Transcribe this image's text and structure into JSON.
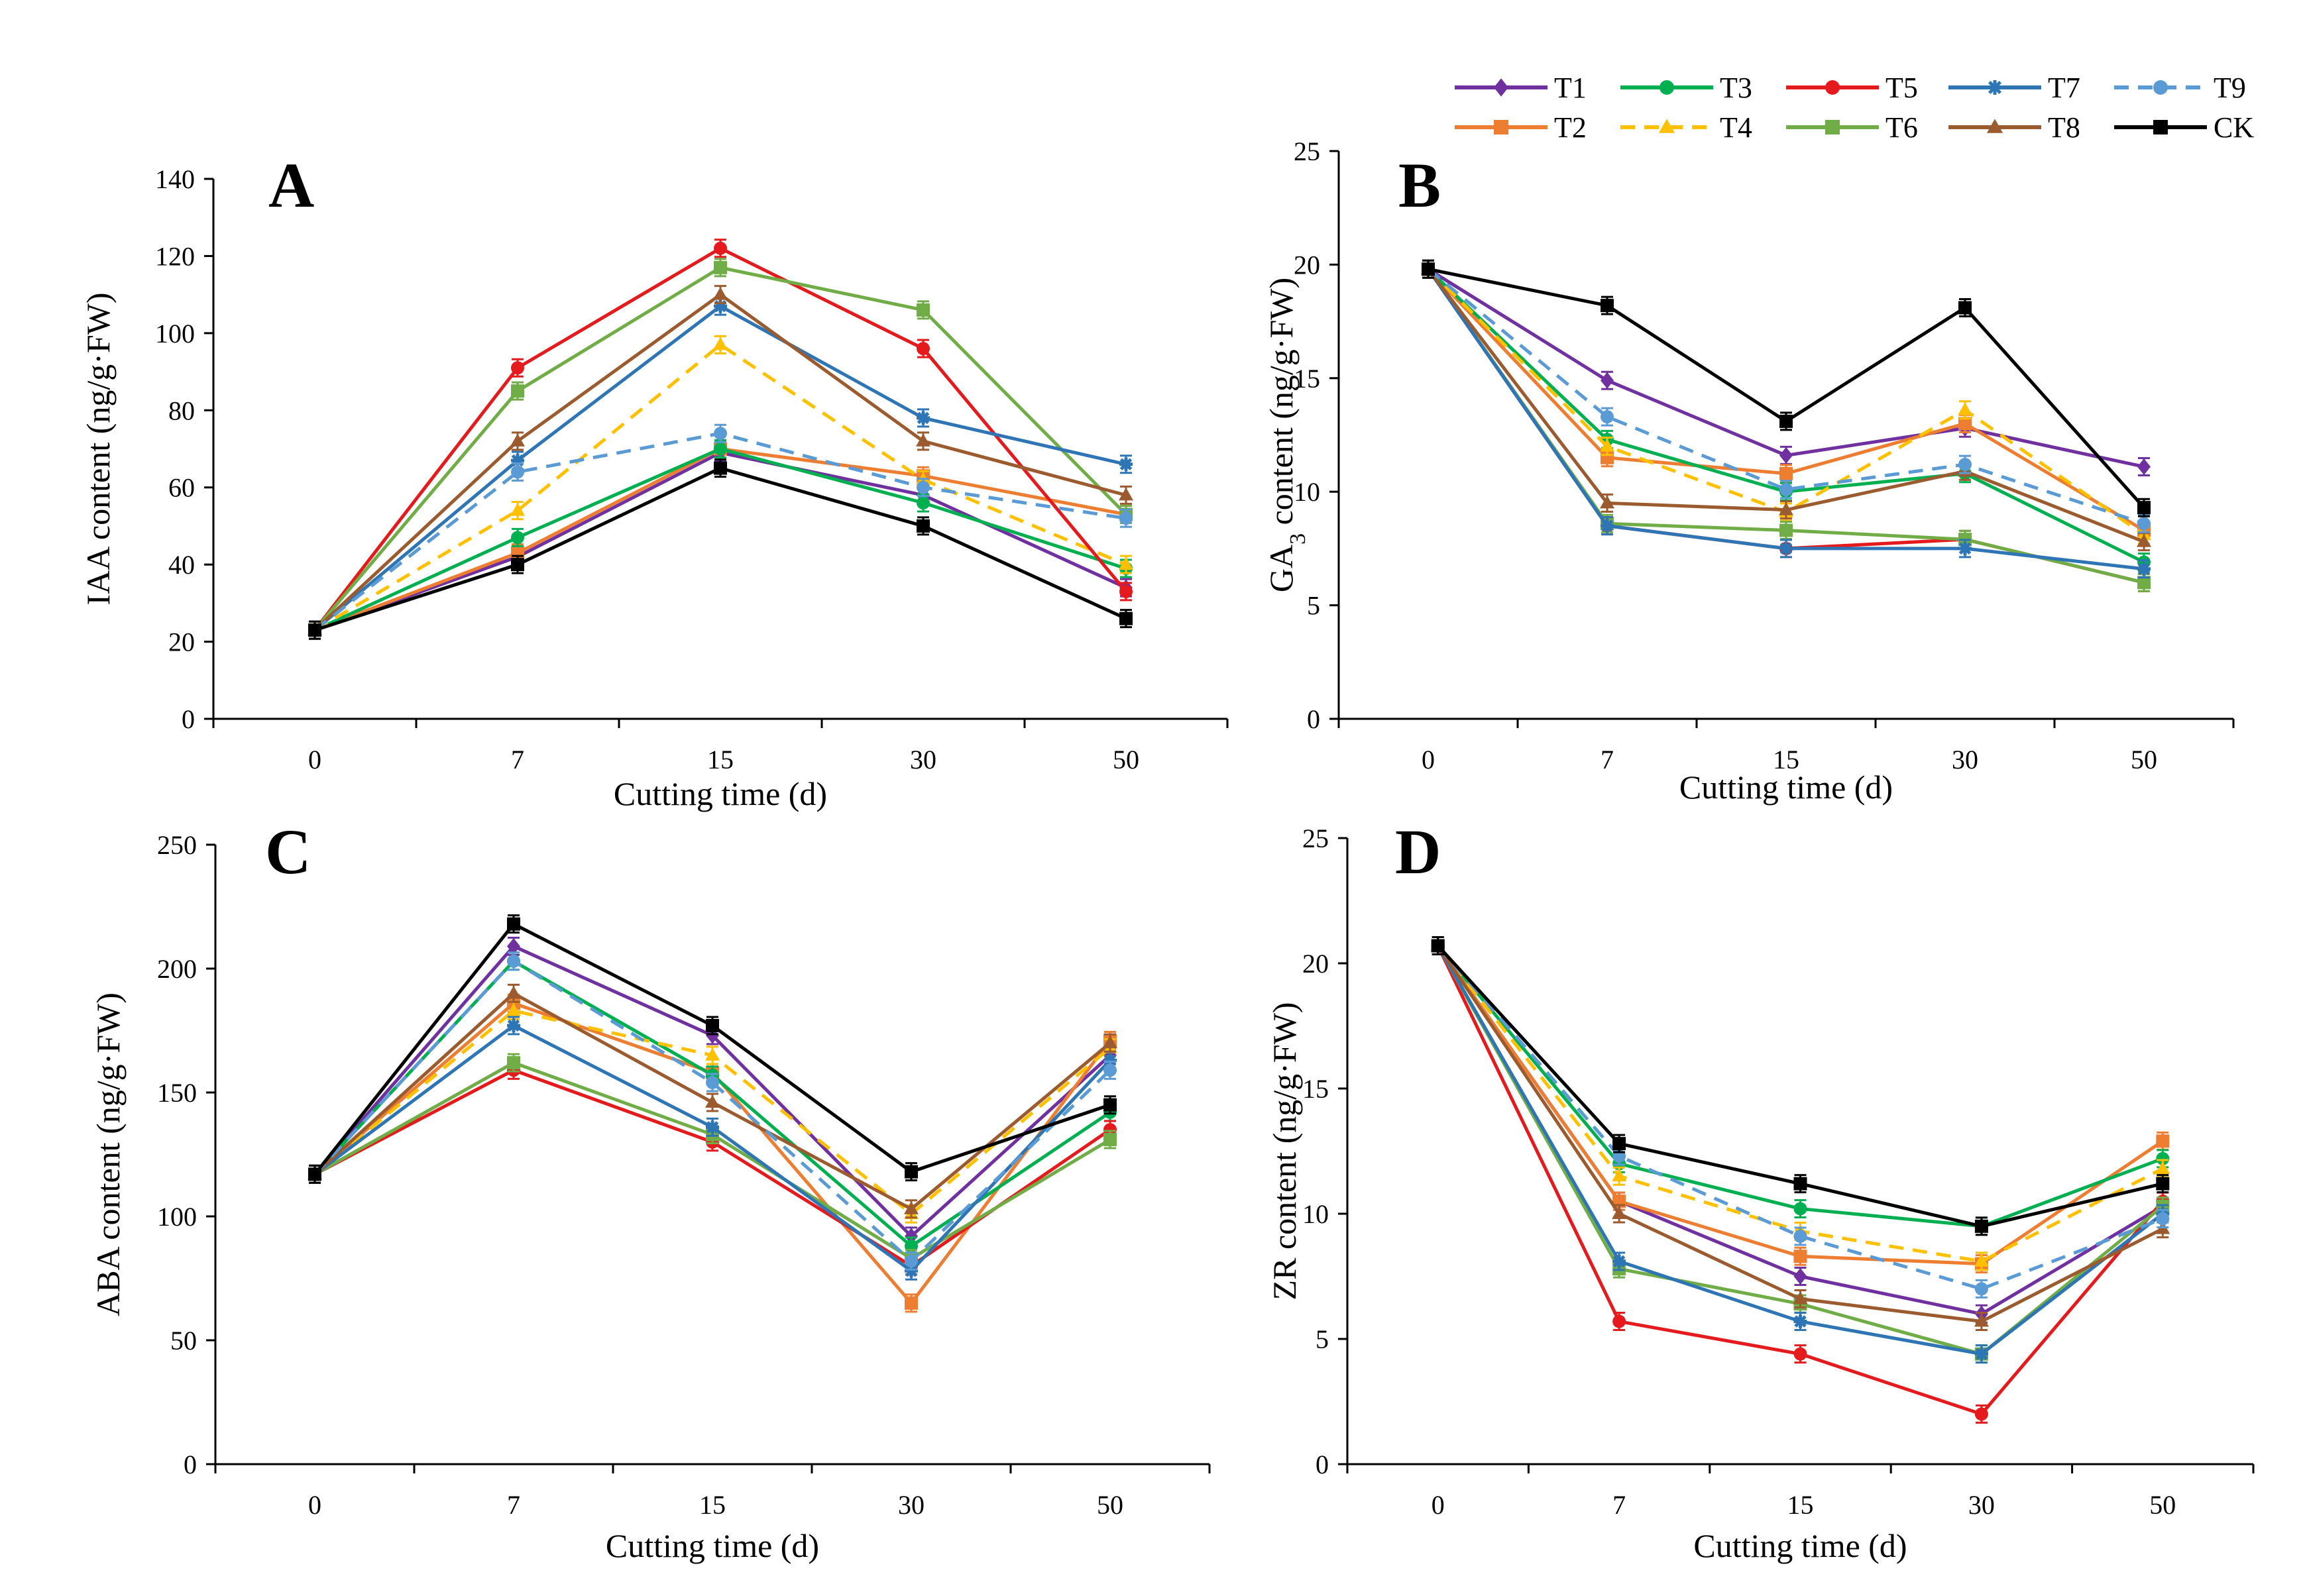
{
  "legend": {
    "entries": [
      {
        "name": "T1",
        "color": "#7030A0",
        "marker": "diamond",
        "dash": false
      },
      {
        "name": "T3",
        "color": "#00B050",
        "marker": "circle",
        "dash": false
      },
      {
        "name": "T5",
        "color": "#E41A1C",
        "marker": "circle",
        "dash": false
      },
      {
        "name": "T7",
        "color": "#2E75B6",
        "marker": "star",
        "dash": false
      },
      {
        "name": "T9",
        "color": "#5B9BD5",
        "marker": "circle",
        "dash": true
      },
      {
        "name": "T2",
        "color": "#ED7D31",
        "marker": "square",
        "dash": false
      },
      {
        "name": "T4",
        "color": "#FFC000",
        "marker": "triangle",
        "dash": true
      },
      {
        "name": "T6",
        "color": "#70AD47",
        "marker": "square",
        "dash": false
      },
      {
        "name": "T8",
        "color": "#9C5B2E",
        "marker": "triangle",
        "dash": false
      },
      {
        "name": "CK",
        "color": "#000000",
        "marker": "square",
        "dash": false
      }
    ]
  },
  "chart_data": [
    {
      "type": "line",
      "panel": "A",
      "xlabel": "Cutting time  (d)",
      "ylabel": "IAA content (ng/g·FW)",
      "categories": [
        "0",
        "7",
        "15",
        "30",
        "50"
      ],
      "ylim": [
        0,
        140
      ],
      "yticks": [
        "0",
        "20",
        "40",
        "60",
        "80",
        "100",
        "120",
        "140"
      ],
      "series": [
        {
          "name": "T1",
          "values": [
            23,
            42,
            69,
            58,
            34
          ]
        },
        {
          "name": "T2",
          "values": [
            23,
            43,
            70,
            63,
            53
          ]
        },
        {
          "name": "T3",
          "values": [
            23,
            47,
            70,
            56,
            39
          ]
        },
        {
          "name": "T4",
          "values": [
            23,
            54,
            97,
            62,
            40
          ]
        },
        {
          "name": "T5",
          "values": [
            23,
            91,
            122,
            96,
            33
          ]
        },
        {
          "name": "T6",
          "values": [
            23,
            85,
            117,
            106,
            53
          ]
        },
        {
          "name": "T7",
          "values": [
            23,
            67,
            107,
            78,
            66
          ]
        },
        {
          "name": "T8",
          "values": [
            23,
            72,
            110,
            72,
            58
          ]
        },
        {
          "name": "T9",
          "values": [
            23,
            64,
            74,
            60,
            52
          ]
        },
        {
          "name": "CK",
          "values": [
            23,
            40,
            65,
            50,
            26
          ]
        }
      ]
    },
    {
      "type": "line",
      "panel": "B",
      "xlabel": "Cutting time  (d)",
      "ylabel_prefix": "GA",
      "ylabel_sub": "3",
      "ylabel_suffix": " content (ng/g·FW)",
      "categories": [
        "0",
        "7",
        "15",
        "30",
        "50"
      ],
      "ylim": [
        0,
        25
      ],
      "yticks": [
        "0",
        "5",
        "10",
        "15",
        "20",
        "25"
      ],
      "series": [
        {
          "name": "T1",
          "values": [
            19.8,
            14.9,
            11.6,
            12.8,
            11.1
          ]
        },
        {
          "name": "T2",
          "values": [
            19.8,
            11.5,
            10.8,
            13.0,
            8.3
          ]
        },
        {
          "name": "T3",
          "values": [
            19.8,
            12.3,
            10.0,
            10.8,
            6.9
          ]
        },
        {
          "name": "T4",
          "values": [
            19.8,
            12.0,
            9.1,
            13.6,
            8.1
          ]
        },
        {
          "name": "T5",
          "values": [
            19.8,
            8.5,
            7.5,
            7.9,
            6.0
          ]
        },
        {
          "name": "T6",
          "values": [
            19.8,
            8.6,
            8.3,
            7.9,
            6.0
          ]
        },
        {
          "name": "T7",
          "values": [
            19.8,
            8.5,
            7.5,
            7.5,
            6.6
          ]
        },
        {
          "name": "T8",
          "values": [
            19.8,
            9.5,
            9.2,
            10.9,
            7.8
          ]
        },
        {
          "name": "T9",
          "values": [
            19.8,
            13.3,
            10.1,
            11.2,
            8.6
          ]
        },
        {
          "name": "CK",
          "values": [
            19.8,
            18.2,
            13.1,
            18.1,
            9.3
          ]
        }
      ]
    },
    {
      "type": "line",
      "panel": "C",
      "xlabel": "Cutting time  (d)",
      "ylabel": "ABA content (ng/g·FW)",
      "categories": [
        "0",
        "7",
        "15",
        "30",
        "50"
      ],
      "ylim": [
        0,
        250
      ],
      "yticks": [
        "0",
        "50",
        "100",
        "150",
        "200",
        "250"
      ],
      "series": [
        {
          "name": "T1",
          "values": [
            117,
            209,
            173,
            92,
            165
          ]
        },
        {
          "name": "T2",
          "values": [
            117,
            186,
            158,
            65,
            171
          ]
        },
        {
          "name": "T3",
          "values": [
            117,
            203,
            157,
            88,
            142
          ]
        },
        {
          "name": "T4",
          "values": [
            117,
            183,
            165,
            101,
            168
          ]
        },
        {
          "name": "T5",
          "values": [
            117,
            159,
            130,
            80,
            135
          ]
        },
        {
          "name": "T6",
          "values": [
            117,
            162,
            133,
            83,
            131
          ]
        },
        {
          "name": "T7",
          "values": [
            117,
            177,
            136,
            78,
            163
          ]
        },
        {
          "name": "T8",
          "values": [
            117,
            190,
            146,
            103,
            170
          ]
        },
        {
          "name": "T9",
          "values": [
            117,
            203,
            154,
            82,
            159
          ]
        },
        {
          "name": "CK",
          "values": [
            117,
            218,
            177,
            118,
            145
          ]
        }
      ]
    },
    {
      "type": "line",
      "panel": "D",
      "xlabel": "Cutting time  (d)",
      "ylabel": "ZR content (ng/g·FW)",
      "categories": [
        "0",
        "7",
        "15",
        "30",
        "50"
      ],
      "ylim": [
        0,
        25
      ],
      "yticks": [
        "0",
        "5",
        "10",
        "15",
        "20",
        "25"
      ],
      "series": [
        {
          "name": "T1",
          "values": [
            20.7,
            10.5,
            7.5,
            6.0,
            10.3
          ]
        },
        {
          "name": "T2",
          "values": [
            20.7,
            10.5,
            8.3,
            8.0,
            12.9
          ]
        },
        {
          "name": "T3",
          "values": [
            20.7,
            12.0,
            10.2,
            9.5,
            12.2
          ]
        },
        {
          "name": "T4",
          "values": [
            20.7,
            11.5,
            9.3,
            8.1,
            11.8
          ]
        },
        {
          "name": "T5",
          "values": [
            20.7,
            5.7,
            4.4,
            2.0,
            10.5
          ]
        },
        {
          "name": "T6",
          "values": [
            20.7,
            7.8,
            6.4,
            4.4,
            10.3
          ]
        },
        {
          "name": "T7",
          "values": [
            20.7,
            8.1,
            5.7,
            4.4,
            10.0
          ]
        },
        {
          "name": "T8",
          "values": [
            20.7,
            10.0,
            6.6,
            5.7,
            9.4
          ]
        },
        {
          "name": "T9",
          "values": [
            20.7,
            12.3,
            9.1,
            7.0,
            9.8
          ]
        },
        {
          "name": "CK",
          "values": [
            20.7,
            12.8,
            11.2,
            9.5,
            11.2
          ]
        }
      ]
    }
  ]
}
